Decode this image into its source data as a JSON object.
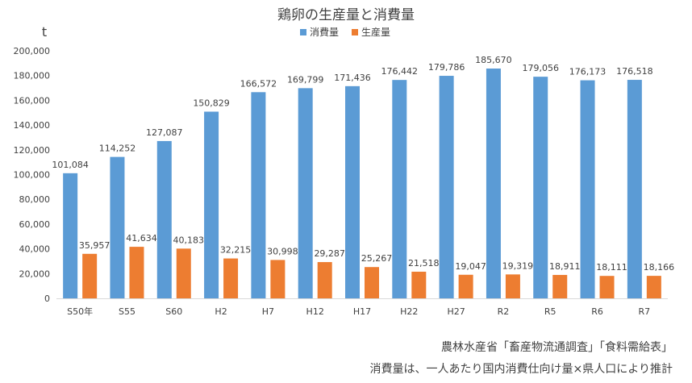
{
  "chart_data": {
    "type": "bar",
    "title": "鶏卵の生産量と消費量",
    "unit_label": "t",
    "ylim": [
      0,
      200000
    ],
    "y_ticks": [
      "0",
      "20,000",
      "40,000",
      "60,000",
      "80,000",
      "100,000",
      "120,000",
      "140,000",
      "160,000",
      "180,000",
      "200,000"
    ],
    "grid": false,
    "legend_position": "top",
    "categories": [
      "S50年",
      "S55",
      "S60",
      "H2",
      "H7",
      "H12",
      "H17",
      "H22",
      "H27",
      "R2",
      "R5",
      "R6",
      "R7"
    ],
    "series": [
      {
        "name": "消費量",
        "color": "#5b9bd5",
        "values": [
          101084,
          114252,
          127087,
          150829,
          166572,
          169799,
          171436,
          176442,
          179786,
          185670,
          179056,
          176173,
          176518
        ],
        "labels": [
          "101,084",
          "114,252",
          "127,087",
          "150,829",
          "166,572",
          "169,799",
          "171,436",
          "176,442",
          "179,786",
          "185,670",
          "179,056",
          "176,173",
          "176,518"
        ]
      },
      {
        "name": "生産量",
        "color": "#ed7d31",
        "values": [
          35957,
          41634,
          40183,
          32215,
          30998,
          29287,
          25267,
          21518,
          19047,
          19319,
          18911,
          18111,
          18166
        ],
        "labels": [
          "35,957",
          "41,634",
          "40,183",
          "32,215",
          "30,998",
          "29,287",
          "25,267",
          "21,518",
          "19,047",
          "19,319",
          "18,911",
          "18,111",
          "18,166"
        ]
      }
    ]
  },
  "notes": {
    "source": "農林水産省「畜産物流通調査」「食料需給表」",
    "method": "消費量は、一人あたり国内消費仕向け量×県人口により推計"
  }
}
